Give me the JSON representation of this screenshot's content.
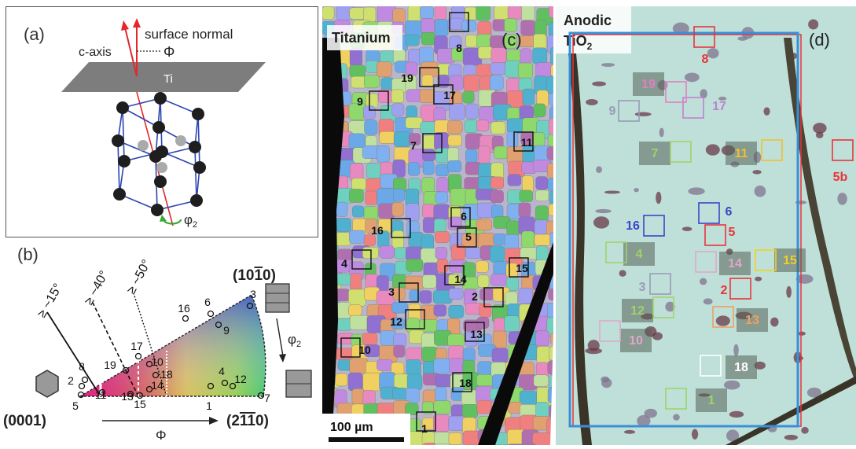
{
  "panel_a": {
    "label": "(a)",
    "surface_normal": "surface normal",
    "c_axis": "c-axis",
    "phi": "Φ",
    "ti": "Ti",
    "phi2": "φ",
    "phi2_sub": "2"
  },
  "panel_b": {
    "label": "(b)",
    "pole_0001": "(0001)",
    "pole_10m10": "(10",
    "pole_10m10_bar": "1",
    "pole_10m10_end": "0)",
    "pole_2m1m10_a": "(2",
    "pole_2m1m10_bar": "11",
    "pole_2m1m10_end": "0)",
    "lines": [
      "≥ ~15°",
      "≥ ~40°",
      "≥ ~50°"
    ],
    "phi_axis": "Φ",
    "phi2": "φ",
    "phi2_sub": "2",
    "grain_labels": [
      "1",
      "2",
      "3",
      "4",
      "5",
      "6",
      "7",
      "8",
      "9",
      "10",
      "11",
      "12",
      "13",
      "14",
      "15",
      "16",
      "17",
      "18",
      "19"
    ]
  },
  "panel_c": {
    "title": "Titanium",
    "label": "(c)",
    "scale": "100 µm",
    "grains": [
      "1",
      "2",
      "3",
      "4",
      "5",
      "6",
      "7",
      "8",
      "9",
      "10",
      "11",
      "12",
      "13",
      "14",
      "15",
      "16",
      "17",
      "18",
      "19"
    ]
  },
  "panel_d": {
    "title_line1": "Anodic",
    "title_line2": "TiO",
    "title_sub": "2",
    "label": "(d)",
    "grains": [
      "1",
      "2",
      "3",
      "4",
      "5",
      "5b",
      "6",
      "7",
      "8",
      "9",
      "10",
      "11",
      "12",
      "13",
      "14",
      "15",
      "16",
      "17",
      "18",
      "19"
    ]
  },
  "colors": {
    "red": "#e8333a",
    "blue_frame": "#3a8fd8",
    "ipf_red": "#e8203a",
    "ipf_green": "#9adb4a",
    "ipf_blue": "#2a3fd0"
  }
}
